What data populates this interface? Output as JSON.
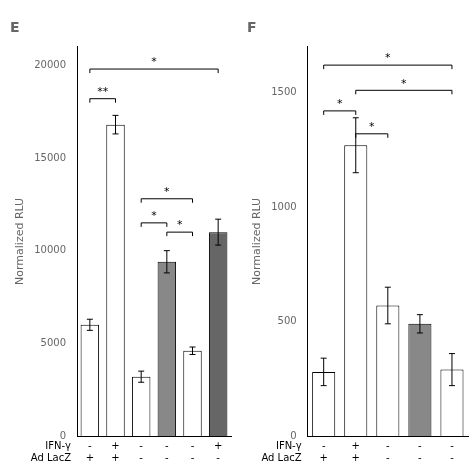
{
  "chart_data": [
    {
      "type": "bar",
      "title": "E",
      "ylabel": "Normalized RLU",
      "categories": [
        [
          "-",
          "+"
        ],
        [
          "+",
          "+"
        ],
        [
          "-",
          "-"
        ],
        [
          "-",
          "-"
        ],
        [
          "-",
          "-"
        ],
        [
          "+",
          "-"
        ]
      ],
      "values": [
        6000,
        16800,
        3200,
        9400,
        4600,
        11000
      ],
      "errors": [
        300,
        500,
        300,
        600,
        200,
        700
      ],
      "colors": [
        "white",
        "white",
        "white",
        "#888888",
        "white",
        "#666666"
      ],
      "ylim": [
        0,
        21000
      ],
      "yticks": [
        0,
        5000,
        10000,
        15000,
        20000
      ],
      "grid": false,
      "annotations": [
        {
          "text": "IFN-γ"
        },
        {
          "text": "Ad LacZ"
        },
        {
          "x1": 0,
          "x2": 5,
          "y": 19800,
          "text": "*"
        },
        {
          "x1": 0,
          "x2": 1,
          "y": 18200,
          "text": "**"
        },
        {
          "x1": 2,
          "x2": 4,
          "y": 12800,
          "text": "*"
        },
        {
          "x1": 2,
          "x2": 3,
          "y": 11500,
          "text": "*"
        },
        {
          "x1": 3,
          "x2": 4,
          "y": 11000,
          "text": "*"
        }
      ]
    },
    {
      "type": "bar",
      "title": "F",
      "ylabel": "Normalized RLU",
      "categories": [
        [
          "-",
          "+"
        ],
        [
          "+",
          "+"
        ],
        [
          "-",
          "-"
        ],
        [
          "-",
          "-"
        ],
        [
          "-",
          "-"
        ]
      ],
      "values": [
        280,
        1270,
        570,
        490,
        290
      ],
      "errors": [
        60,
        120,
        80,
        40,
        70
      ],
      "colors": [
        "white",
        "white",
        "white",
        "#888888",
        "white"
      ],
      "ylim": [
        0,
        1700
      ],
      "yticks": [
        0,
        500,
        1000,
        1500
      ],
      "grid": false,
      "annotations": [
        {
          "text": "IFN-γ"
        },
        {
          "text": "Ad LacZ"
        },
        {
          "x1": 0,
          "x2": 4,
          "y": 1620,
          "text": "*"
        },
        {
          "x1": 1,
          "x2": 4,
          "y": 1510,
          "text": "*"
        },
        {
          "x1": 0,
          "x2": 1,
          "y": 1420,
          "text": "*"
        },
        {
          "x1": 1,
          "x2": 2,
          "y": 1320,
          "text": "*"
        }
      ]
    }
  ]
}
